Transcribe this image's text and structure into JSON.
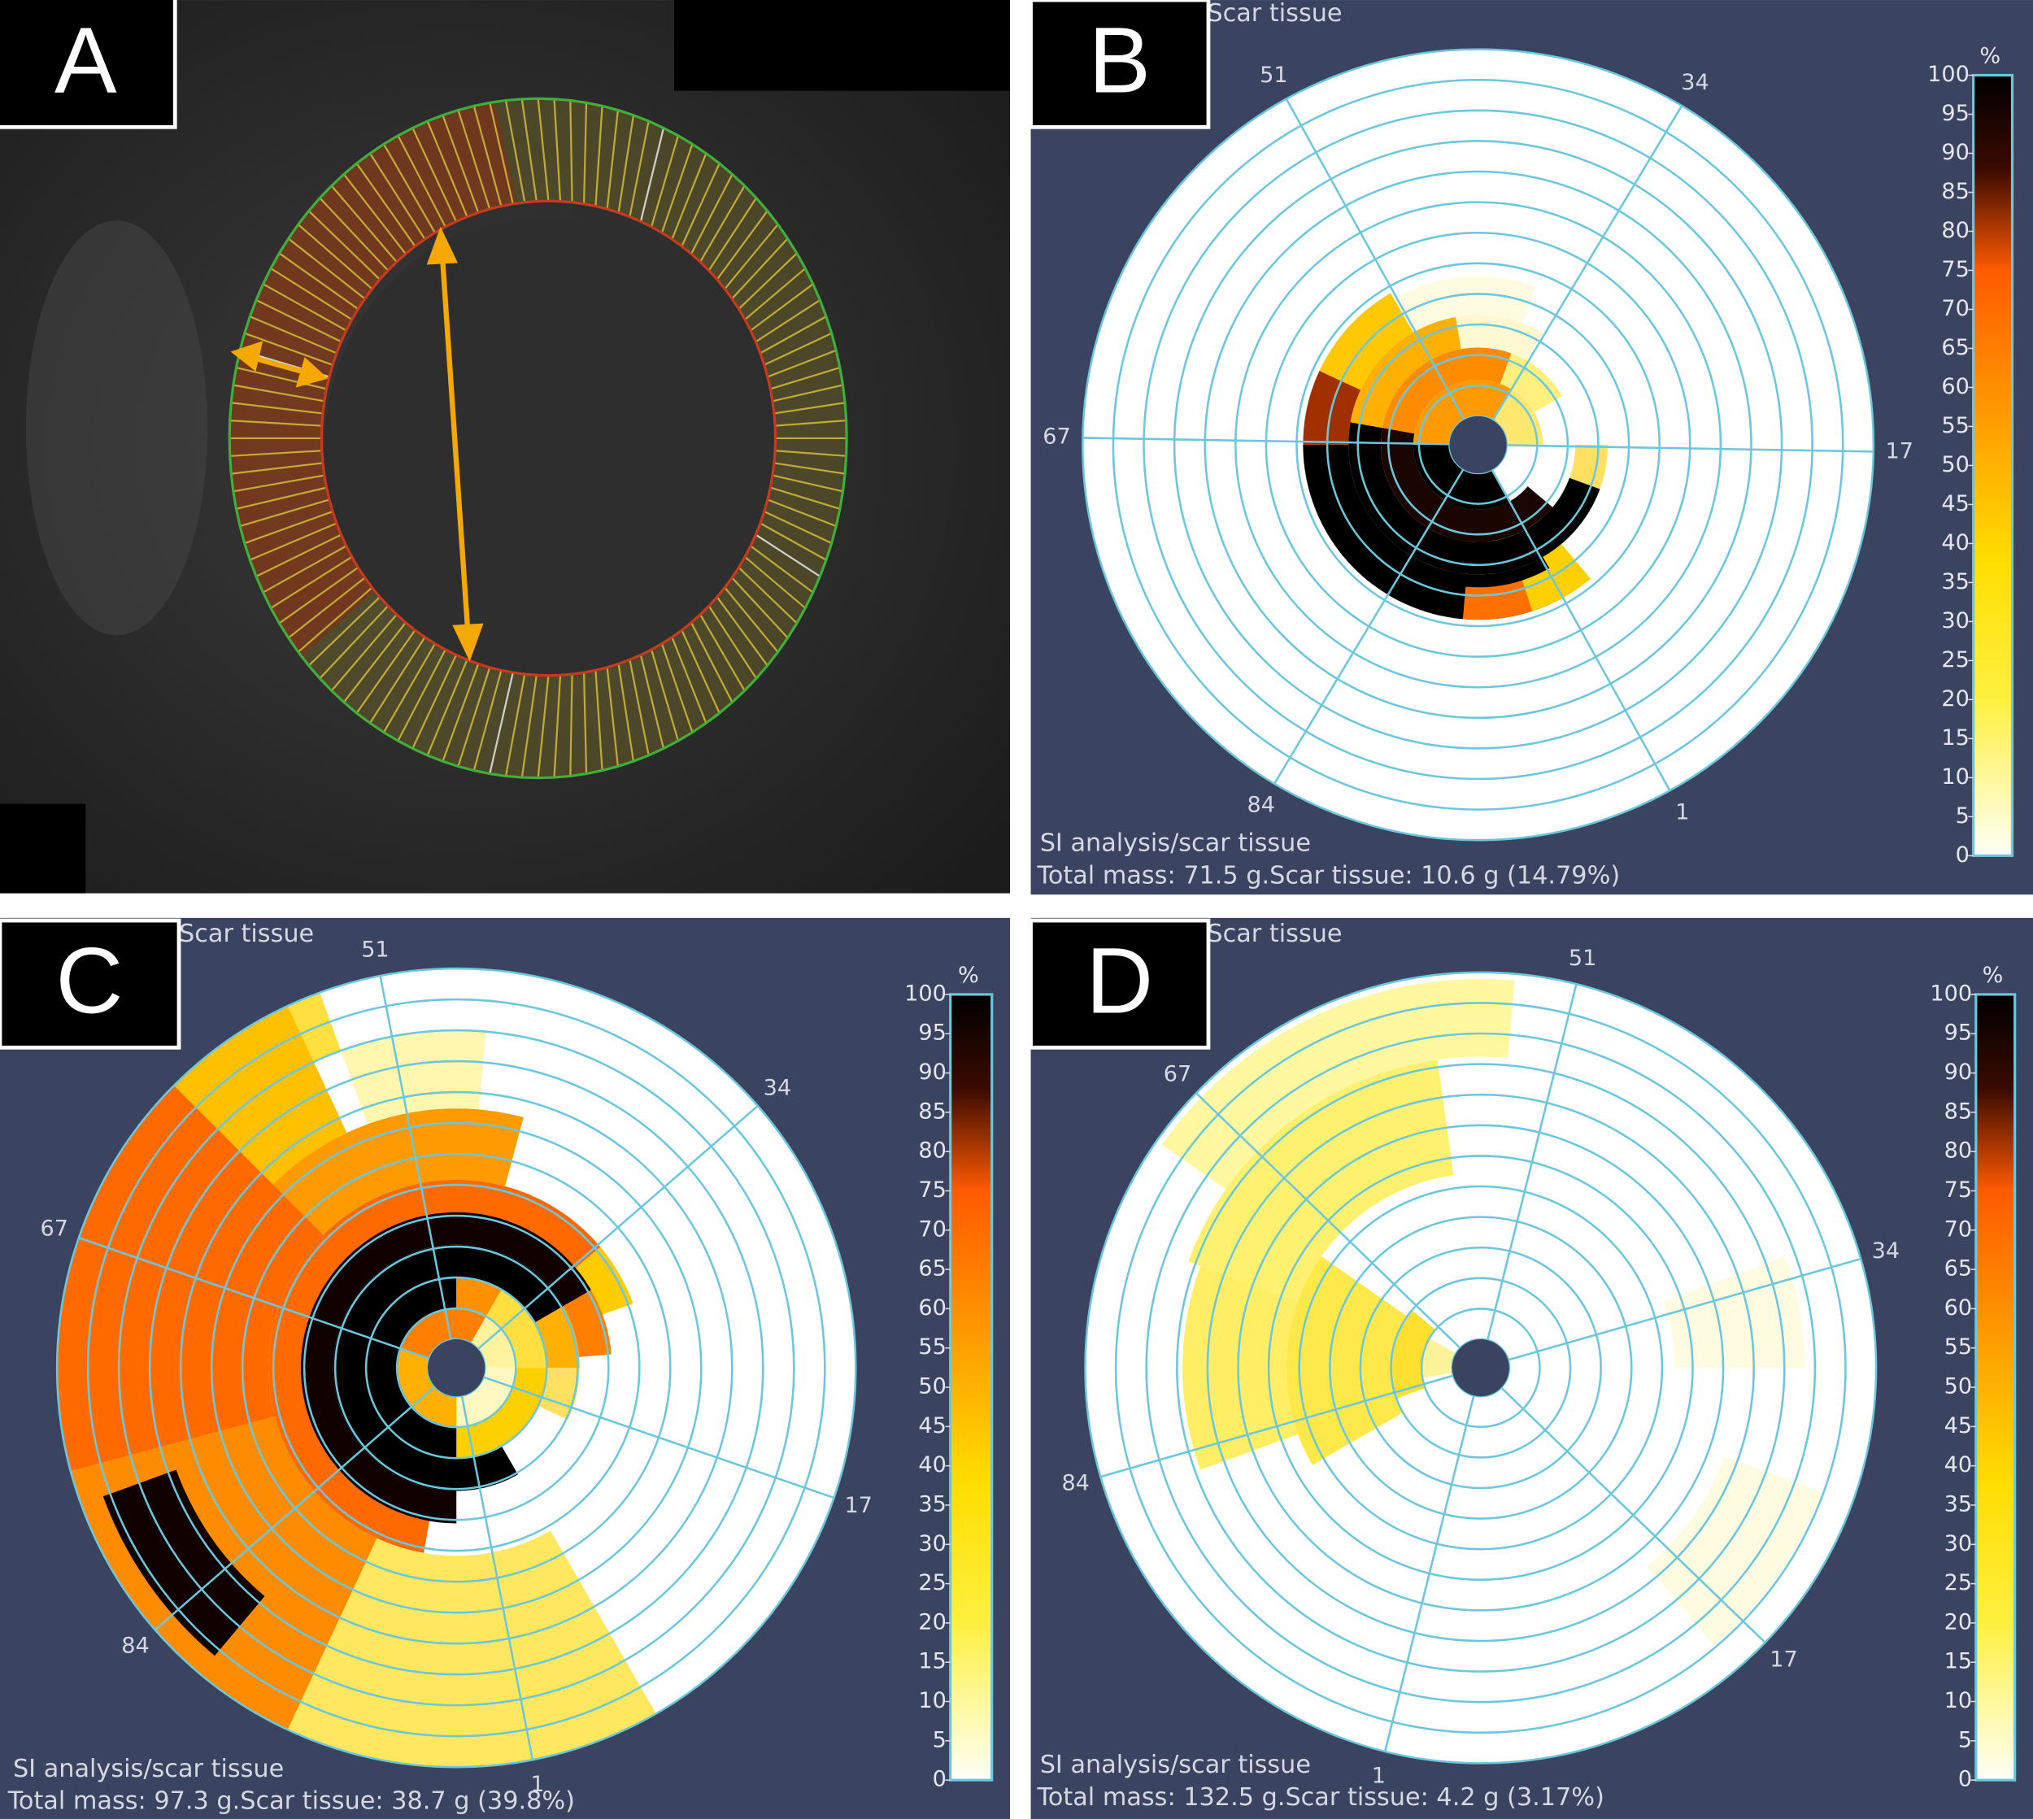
{
  "panels": [
    {
      "label": "A"
    },
    {
      "label": "B",
      "title": "Scar tissue",
      "spoke_labels": [
        "51",
        "34",
        "17",
        "1",
        "84",
        "67"
      ],
      "colorbar": {
        "unit": "%",
        "ticks": [
          0,
          5,
          10,
          15,
          20,
          25,
          30,
          35,
          40,
          45,
          50,
          55,
          60,
          65,
          70,
          75,
          80,
          85,
          90,
          95,
          100
        ]
      },
      "footer": [
        "SI analysis/scar tissue",
        "Total mass: 71.5 g.Scar tissue: 10.6 g (14.79%)"
      ]
    },
    {
      "label": "C",
      "title": "Scar tissue",
      "spoke_labels": [
        "51",
        "34",
        "17",
        "1",
        "84",
        "67"
      ],
      "colorbar": {
        "unit": "%",
        "ticks": [
          0,
          5,
          10,
          15,
          20,
          25,
          30,
          35,
          40,
          45,
          50,
          55,
          60,
          65,
          70,
          75,
          80,
          85,
          90,
          95,
          100
        ]
      },
      "footer": [
        "SI analysis/scar tissue",
        "Total mass: 97.3 g.Scar tissue: 38.7 g (39.8%)"
      ]
    },
    {
      "label": "D",
      "title": "Scar tissue",
      "spoke_labels": [
        "51",
        "34",
        "17",
        "1",
        "84",
        "67"
      ],
      "colorbar": {
        "unit": "%",
        "ticks": [
          0,
          5,
          10,
          15,
          20,
          25,
          30,
          35,
          40,
          45,
          50,
          55,
          60,
          65,
          70,
          75,
          80,
          85,
          90,
          95,
          100
        ]
      },
      "footer": [
        "SI analysis/scar tissue",
        "Total mass: 132.5 g.Scar tissue: 4.2 g (3.17%)"
      ]
    }
  ]
}
